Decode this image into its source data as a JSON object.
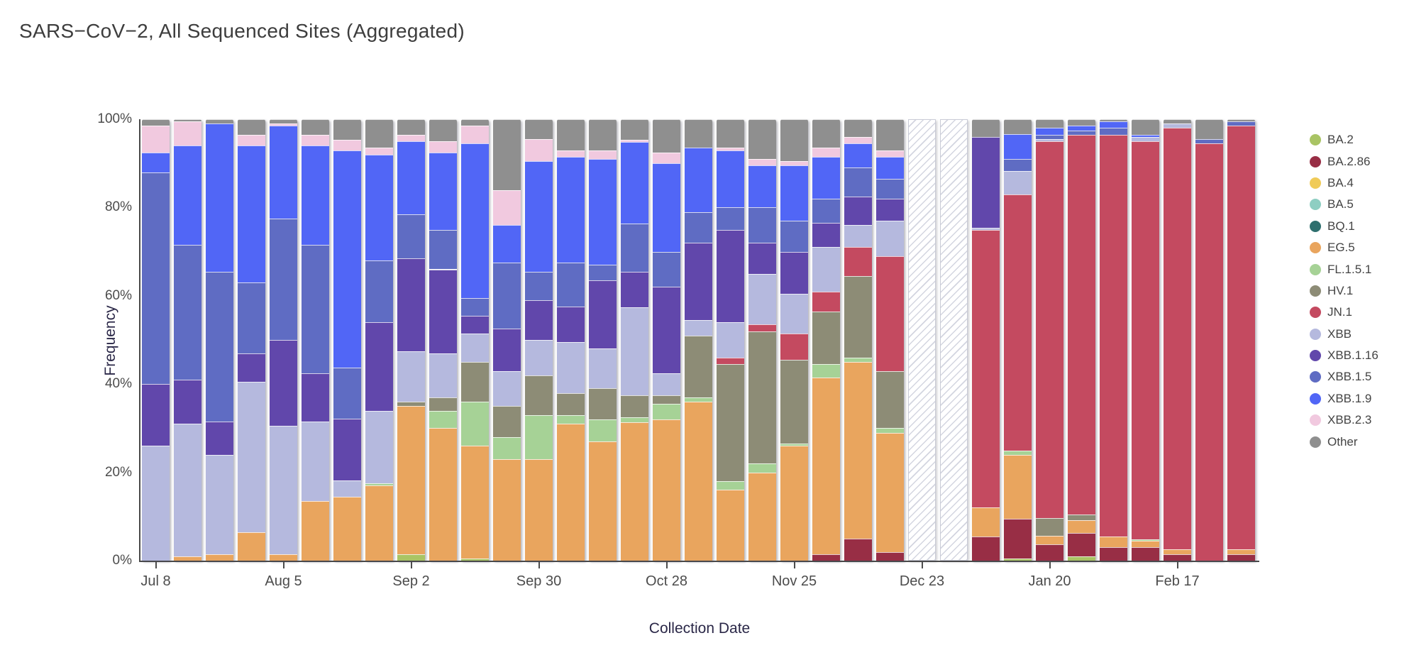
{
  "header": {
    "title": "SARS−CoV−2, All Sequenced Sites (Aggregated)"
  },
  "chart_data": {
    "type": "bar",
    "stacked": true,
    "title": "SARS−CoV−2, All Sequenced Sites (Aggregated)",
    "xlabel": "Collection Date",
    "ylabel": "Frequency",
    "ylim": [
      0,
      100
    ],
    "grid": false,
    "legend_position": "right",
    "y_ticks": [
      "0%",
      "20%",
      "40%",
      "60%",
      "80%",
      "100%"
    ],
    "x_ticks": [
      "Jul 8",
      "Aug 5",
      "Sep 2",
      "Sep 30",
      "Oct 28",
      "Nov 25",
      "Dec 23",
      "Jan 20",
      "Feb 17"
    ],
    "x_tick_indices": [
      0,
      4,
      8,
      12,
      16,
      20,
      24,
      28,
      32
    ],
    "no_data_style": "diagonal-hatch",
    "series": [
      {
        "name": "BA.2",
        "color": "#a9c464"
      },
      {
        "name": "BA.2.86",
        "color": "#982e45"
      },
      {
        "name": "BA.4",
        "color": "#f0cb58"
      },
      {
        "name": "BA.5",
        "color": "#8ecec2"
      },
      {
        "name": "BQ.1",
        "color": "#2e6f6e"
      },
      {
        "name": "EG.5",
        "color": "#e9a55e"
      },
      {
        "name": "FL.1.5.1",
        "color": "#a6d296"
      },
      {
        "name": "HV.1",
        "color": "#8d8c76"
      },
      {
        "name": "JN.1",
        "color": "#c44a60"
      },
      {
        "name": "XBB",
        "color": "#b5b9de"
      },
      {
        "name": "XBB.1.16",
        "color": "#6147ab"
      },
      {
        "name": "XBB.1.5",
        "color": "#5f6cc3"
      },
      {
        "name": "XBB.1.9",
        "color": "#5166f6"
      },
      {
        "name": "XBB.2.3",
        "color": "#f1c9df"
      },
      {
        "name": "Other",
        "color": "#8f8f8f"
      }
    ],
    "bars": [
      {
        "date": "Jul 8",
        "values": {
          "XBB": 26,
          "XBB.1.16": 14,
          "XBB.1.5": 48,
          "XBB.1.9": 4.5,
          "XBB.2.3": 6,
          "Other": 1.5
        }
      },
      {
        "date": "Jul 15",
        "values": {
          "EG.5": 1,
          "XBB": 30,
          "XBB.1.16": 10,
          "XBB.1.5": 30.5,
          "XBB.1.9": 22.5,
          "XBB.2.3": 5.5,
          "Other": 0.5
        }
      },
      {
        "date": "Jul 22",
        "values": {
          "EG.5": 1.5,
          "XBB": 22.5,
          "XBB.1.16": 7.5,
          "XBB.1.5": 34,
          "XBB.1.9": 33.5,
          "Other": 1
        }
      },
      {
        "date": "Jul 29",
        "values": {
          "EG.5": 6.5,
          "XBB": 34,
          "XBB.1.16": 6.5,
          "XBB.1.5": 16,
          "XBB.1.9": 31,
          "XBB.2.3": 2.5,
          "Other": 3.5
        }
      },
      {
        "date": "Aug 5",
        "values": {
          "EG.5": 1.5,
          "XBB": 29,
          "XBB.1.16": 19.5,
          "XBB.1.5": 27.5,
          "XBB.1.9": 21,
          "XBB.2.3": 0.5,
          "Other": 1
        }
      },
      {
        "date": "Aug 12",
        "values": {
          "EG.5": 13.5,
          "XBB": 18,
          "XBB.1.16": 11,
          "XBB.1.5": 29,
          "XBB.1.9": 22.5,
          "XBB.2.3": 2.5,
          "Other": 3.5
        }
      },
      {
        "date": "Aug 19",
        "values": {
          "EG.5": 14.5,
          "XBB": 3.7,
          "XBB.1.16": 14,
          "XBB.1.5": 11.5,
          "XBB.1.9": 49.2,
          "XBB.2.3": 2.4,
          "Other": 4.7
        }
      },
      {
        "date": "Aug 26",
        "values": {
          "EG.5": 17,
          "FL.1.5.1": 0.5,
          "XBB": 16.5,
          "XBB.1.16": 20,
          "XBB.1.5": 14,
          "XBB.1.9": 24,
          "XBB.2.3": 1.5,
          "Other": 6.5
        }
      },
      {
        "date": "Sep 2",
        "values": {
          "BA.2": 1.5,
          "EG.5": 33.5,
          "HV.1": 1,
          "XBB": 11.5,
          "XBB.1.16": 21,
          "XBB.1.5": 10,
          "XBB.1.9": 16.5,
          "XBB.2.3": 1.5,
          "Other": 3.5
        }
      },
      {
        "date": "Sep 9",
        "values": {
          "EG.5": 30,
          "FL.1.5.1": 4,
          "HV.1": 3,
          "XBB": 10,
          "XBB.1.16": 19,
          "XBB.1.5": 9,
          "XBB.1.9": 17.5,
          "XBB.2.3": 2.5,
          "Other": 5
        }
      },
      {
        "date": "Sep 16",
        "values": {
          "BA.2": 0.5,
          "EG.5": 25.5,
          "FL.1.5.1": 10,
          "HV.1": 9,
          "XBB": 6.5,
          "XBB.1.16": 4,
          "XBB.1.5": 4,
          "XBB.1.9": 35,
          "XBB.2.3": 4,
          "Other": 1.5
        }
      },
      {
        "date": "Sep 23",
        "values": {
          "EG.5": 23,
          "FL.1.5.1": 5,
          "HV.1": 7,
          "XBB": 8,
          "XBB.1.16": 9.5,
          "XBB.1.5": 15,
          "XBB.1.9": 8.5,
          "XBB.2.3": 8,
          "Other": 16
        }
      },
      {
        "date": "Sep 30",
        "values": {
          "EG.5": 23,
          "FL.1.5.1": 10,
          "HV.1": 9,
          "XBB": 8,
          "XBB.1.16": 9,
          "XBB.1.5": 6.5,
          "XBB.1.9": 25,
          "XBB.2.3": 5,
          "Other": 4.5
        }
      },
      {
        "date": "Oct 7",
        "values": {
          "EG.5": 31,
          "FL.1.5.1": 2,
          "HV.1": 5,
          "XBB": 11.5,
          "XBB.1.16": 8,
          "XBB.1.5": 10,
          "XBB.1.9": 24,
          "XBB.2.3": 1.5,
          "Other": 7
        }
      },
      {
        "date": "Oct 14",
        "values": {
          "EG.5": 27,
          "FL.1.5.1": 5,
          "HV.1": 7,
          "XBB": 9,
          "XBB.1.16": 15.5,
          "XBB.1.5": 3.5,
          "XBB.1.9": 24,
          "XBB.2.3": 2,
          "Other": 7
        }
      },
      {
        "date": "Oct 21",
        "values": {
          "EG.5": 31.4,
          "FL.1.5.1": 1,
          "HV.1": 5,
          "XBB": 20,
          "XBB.1.16": 8,
          "XBB.1.5": 11,
          "XBB.1.9": 18.5,
          "XBB.2.3": 0.5,
          "Other": 4.6
        }
      },
      {
        "date": "Oct 28",
        "values": {
          "EG.5": 32,
          "FL.1.5.1": 3.5,
          "HV.1": 2,
          "XBB": 5,
          "XBB.1.16": 19.5,
          "XBB.1.5": 8,
          "XBB.1.9": 20,
          "XBB.2.3": 2.5,
          "Other": 7.5
        }
      },
      {
        "date": "Nov 4",
        "values": {
          "EG.5": 36,
          "FL.1.5.1": 1,
          "HV.1": 14,
          "XBB": 3.5,
          "XBB.1.16": 17.5,
          "XBB.1.5": 7,
          "XBB.1.9": 14.5,
          "Other": 6.5
        }
      },
      {
        "date": "Nov 11",
        "values": {
          "EG.5": 16,
          "FL.1.5.1": 2,
          "HV.1": 26.5,
          "JN.1": 1.5,
          "XBB": 8,
          "XBB.1.16": 21,
          "XBB.1.5": 5,
          "XBB.1.9": 13,
          "XBB.2.3": 0.5,
          "Other": 6.5
        }
      },
      {
        "date": "Nov 18",
        "values": {
          "EG.5": 20,
          "FL.1.5.1": 2,
          "HV.1": 30,
          "JN.1": 1.5,
          "XBB": 11.5,
          "XBB.1.16": 7,
          "XBB.1.5": 8,
          "XBB.1.9": 9.5,
          "XBB.2.3": 1.5,
          "Other": 9
        }
      },
      {
        "date": "Nov 25",
        "values": {
          "EG.5": 26,
          "FL.1.5.1": 0.5,
          "HV.1": 19,
          "JN.1": 6,
          "XBB": 9,
          "XBB.1.16": 9.5,
          "XBB.1.5": 7,
          "XBB.1.9": 12.5,
          "XBB.2.3": 1,
          "Other": 9.5
        }
      },
      {
        "date": "Dec 2",
        "values": {
          "BA.2.86": 1.5,
          "EG.5": 40,
          "FL.1.5.1": 3,
          "HV.1": 12,
          "JN.1": 4.5,
          "XBB": 10,
          "XBB.1.16": 5.5,
          "XBB.1.5": 5.5,
          "XBB.1.9": 9.5,
          "XBB.2.3": 2,
          "Other": 6.5
        }
      },
      {
        "date": "Dec 9",
        "values": {
          "BA.2.86": 5,
          "EG.5": 40,
          "FL.1.5.1": 1,
          "HV.1": 18.5,
          "JN.1": 6.5,
          "XBB": 5,
          "XBB.1.16": 6.5,
          "XBB.1.5": 6.5,
          "XBB.1.9": 5.5,
          "XBB.2.3": 1.5,
          "Other": 4
        }
      },
      {
        "date": "Dec 16",
        "values": {
          "BA.2.86": 2,
          "EG.5": 27,
          "FL.1.5.1": 1,
          "HV.1": 13,
          "JN.1": 26,
          "XBB": 8,
          "XBB.1.16": 5,
          "XBB.1.5": 4.5,
          "XBB.1.9": 5,
          "XBB.2.3": 1.5,
          "Other": 7
        }
      },
      {
        "date": "Dec 23",
        "no_data": true
      },
      {
        "date": "Dec 30",
        "no_data": true
      },
      {
        "date": "Jan 6",
        "values": {
          "BA.2.86": 5.5,
          "EG.5": 6.5,
          "JN.1": 62.9,
          "XBB": 0.5,
          "XBB.1.16": 20.6,
          "Other": 4
        }
      },
      {
        "date": "Jan 13",
        "values": {
          "BA.2": 0.5,
          "BA.2.86": 9,
          "EG.5": 14.5,
          "FL.1.5.1": 1,
          "JN.1": 58,
          "XBB": 5.3,
          "XBB.1.5": 2.7,
          "XBB.1.9": 5.7,
          "Other": 3.3
        }
      },
      {
        "date": "Jan 20",
        "values": {
          "BA.2.86": 3.7,
          "EG.5": 1.9,
          "HV.1": 4,
          "JN.1": 85.4,
          "XBB": 0.5,
          "XBB.1.5": 1,
          "XBB.1.9": 1.5,
          "Other": 2
        }
      },
      {
        "date": "Jan 27",
        "values": {
          "BA.2": 1,
          "BA.2.86": 5.2,
          "EG.5": 2.9,
          "HV.1": 1.3,
          "JN.1": 86.1,
          "XBB.1.5": 1,
          "XBB.1.9": 1,
          "Other": 1.5
        }
      },
      {
        "date": "Feb 3",
        "values": {
          "BA.2.86": 3,
          "EG.5": 2.4,
          "JN.1": 91.1,
          "XBB.1.5": 1.5,
          "XBB.1.9": 1.5,
          "Other": 0.5
        }
      },
      {
        "date": "Feb 10",
        "values": {
          "BA.2.86": 3,
          "EG.5": 1.5,
          "FL.1.5.1": 0.4,
          "JN.1": 90.1,
          "XBB": 1,
          "XBB.1.9": 0.5,
          "Other": 3.5
        }
      },
      {
        "date": "Feb 17",
        "values": {
          "BA.2.86": 1.4,
          "EG.5": 1.1,
          "JN.1": 95.5,
          "XBB": 1,
          "Other": 1
        }
      },
      {
        "date": "Feb 24",
        "values": {
          "JN.1": 94.5,
          "XBB.1.5": 1,
          "Other": 4.5
        }
      },
      {
        "date": "Mar 2",
        "values": {
          "BA.2.86": 1.5,
          "EG.5": 1,
          "JN.1": 96,
          "XBB.1.5": 1,
          "Other": 0.5
        }
      }
    ]
  }
}
